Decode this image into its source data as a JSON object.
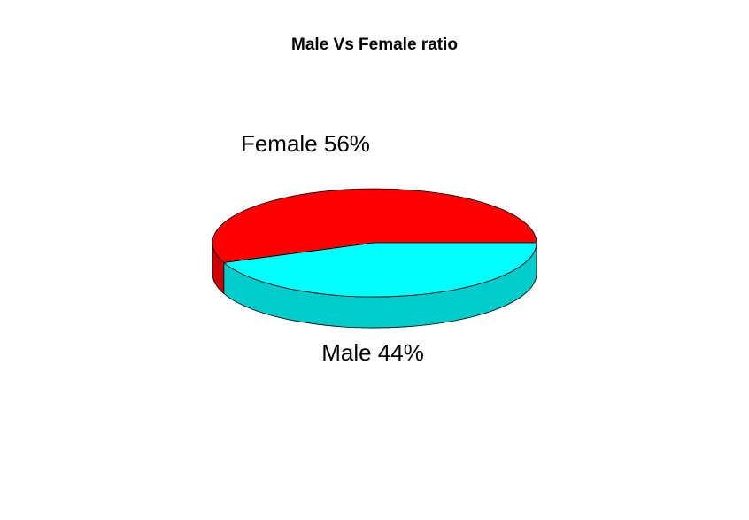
{
  "chart_data": {
    "type": "pie",
    "style": "3d",
    "title": "Male Vs Female ratio",
    "start_angle_deg": 0,
    "direction": "counterclockwise",
    "slices": [
      {
        "label": "Female 56%",
        "value": 56,
        "color": "#ff0000",
        "side_color": "#cc0000"
      },
      {
        "label": "Male 44%",
        "value": 44,
        "color": "#00ffff",
        "side_color": "#00cccc"
      }
    ]
  }
}
